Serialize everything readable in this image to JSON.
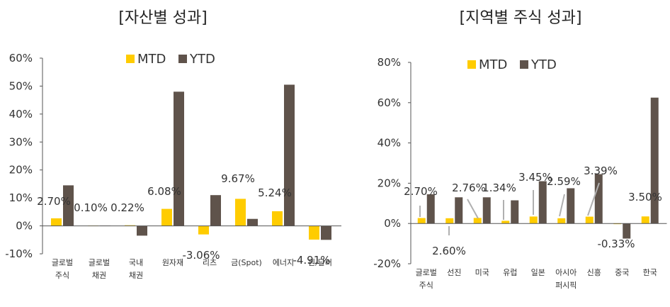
{
  "colors": {
    "mtd": "#ffcc00",
    "ytd": "#5f534b",
    "axis": "#555555",
    "leader": "#b0b0b0"
  },
  "chart_data": [
    {
      "type": "bar",
      "title": "[자산별 성과]",
      "legend": [
        "MTD",
        "YTD"
      ],
      "legend_position": "top",
      "ylim": [
        -10,
        60
      ],
      "yticks": [
        "-10%",
        "0%",
        "10%",
        "20%",
        "30%",
        "40%",
        "50%",
        "60%"
      ],
      "categories": [
        [
          "글로벌",
          "주식"
        ],
        [
          "글로벌",
          "채권"
        ],
        [
          "국내",
          "채권"
        ],
        [
          "원자재"
        ],
        [
          "리츠"
        ],
        [
          "금(Spot)"
        ],
        [
          "에너지"
        ],
        [
          "원/달러"
        ]
      ],
      "series": [
        {
          "name": "MTD",
          "values": [
            2.7,
            0.1,
            0.22,
            6.08,
            -3.06,
            9.67,
            5.24,
            -4.91
          ]
        },
        {
          "name": "YTD",
          "values": [
            14.5,
            0.1,
            -3.5,
            48.0,
            11.0,
            2.5,
            50.5,
            -5.0
          ]
        }
      ],
      "data_labels": [
        "2.70%",
        "0.10%",
        "0.22%",
        "6.08%",
        "-3.06%",
        "9.67%",
        "5.24%",
        "-4.91%"
      ],
      "grid": false
    },
    {
      "type": "bar",
      "title": "[지역별 주식 성과]",
      "legend": [
        "MTD",
        "YTD"
      ],
      "legend_position": "top",
      "ylim": [
        -20,
        80
      ],
      "yticks": [
        "-20%",
        "0%",
        "20%",
        "40%",
        "60%",
        "80%"
      ],
      "categories": [
        [
          "글로벌",
          "주식"
        ],
        [
          "선진"
        ],
        [
          "미국"
        ],
        [
          "유럽"
        ],
        [
          "일본"
        ],
        [
          "아시아",
          "퍼시픽"
        ],
        [
          "신흥"
        ],
        [
          "중국"
        ],
        [
          "한국"
        ]
      ],
      "series": [
        {
          "name": "MTD",
          "values": [
            2.7,
            2.6,
            2.76,
            1.34,
            3.45,
            2.59,
            3.39,
            -0.33,
            3.5
          ]
        },
        {
          "name": "YTD",
          "values": [
            14.5,
            13.0,
            13.0,
            11.5,
            21.0,
            17.5,
            24.5,
            -7.5,
            62.5
          ]
        }
      ],
      "data_labels": [
        "2.70%",
        "2.60%",
        "2.76%",
        "1.34%",
        "3.45%",
        "2.59%",
        "3.39%",
        "-0.33%",
        "3.50%"
      ],
      "grid": false
    }
  ]
}
